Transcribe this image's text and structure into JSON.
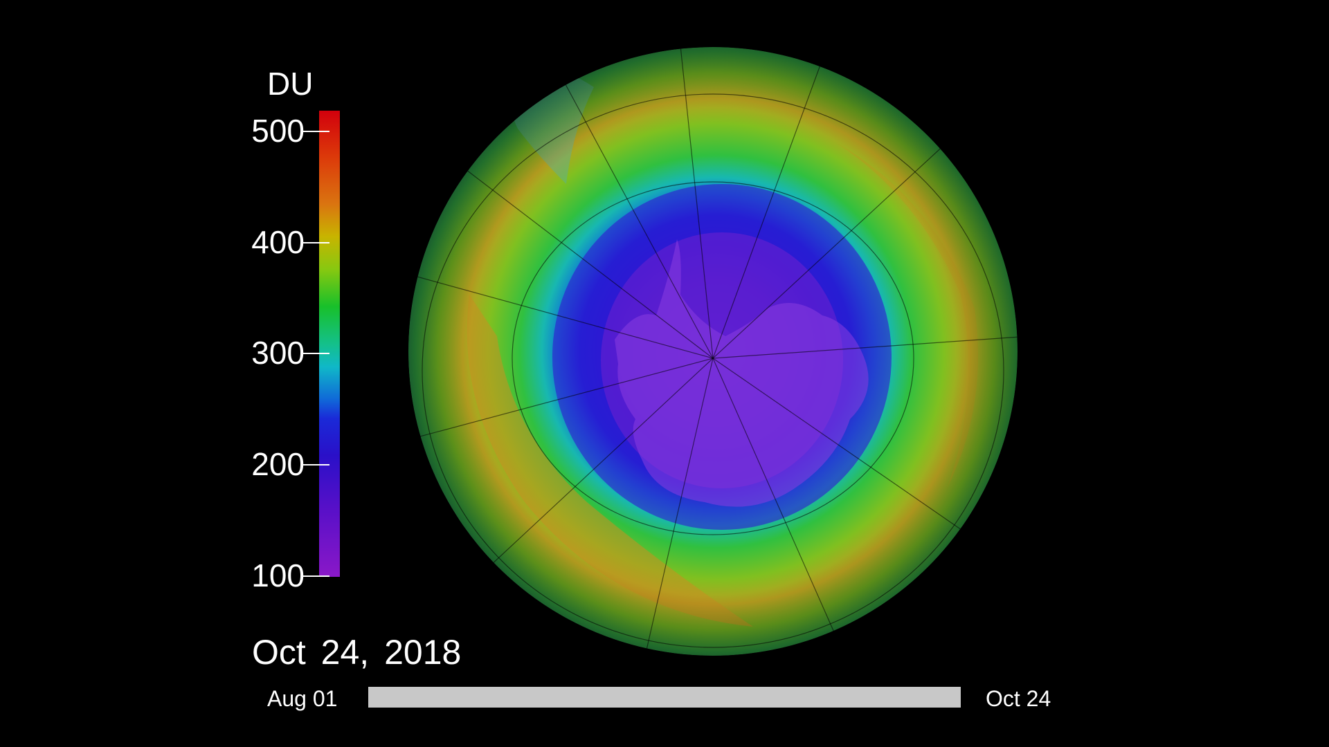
{
  "colorbar": {
    "unit": "DU",
    "ticks": [
      {
        "value": 500,
        "label": "500"
      },
      {
        "value": 400,
        "label": "400"
      },
      {
        "value": 300,
        "label": "300"
      },
      {
        "value": 200,
        "label": "200"
      },
      {
        "value": 100,
        "label": "100"
      }
    ],
    "range": [
      100,
      520
    ],
    "colors_low_to_high": [
      "#8a18c8",
      "#2a10c8",
      "#1068d8",
      "#10b8c8",
      "#18c02a",
      "#c8b400",
      "#da7410",
      "#d2000c"
    ]
  },
  "date": {
    "current": "Oct 24, 2018"
  },
  "timeline": {
    "start_label": "Aug 01",
    "end_label": "Oct 24",
    "progress": 1.0
  }
}
